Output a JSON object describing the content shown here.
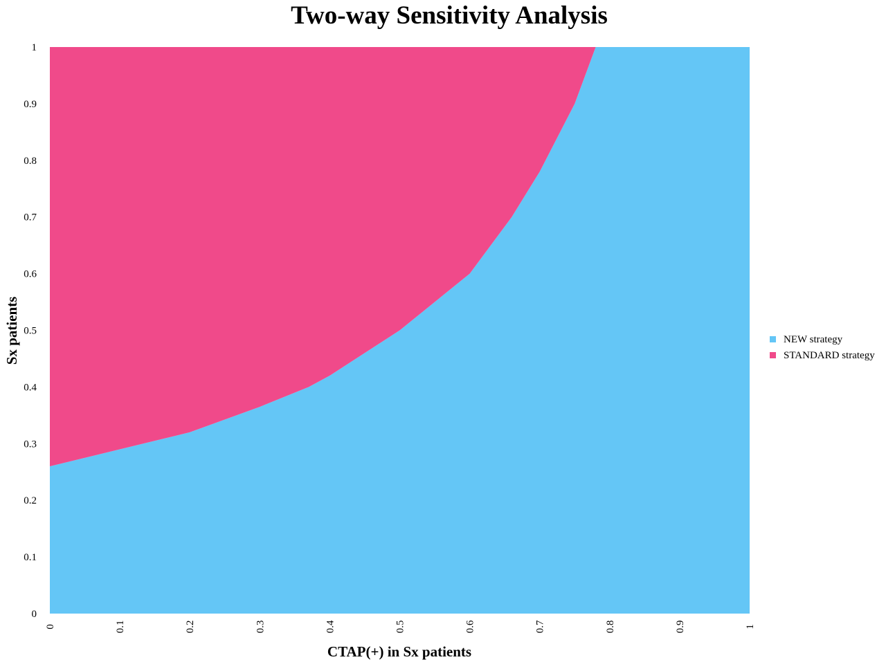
{
  "chart_data": {
    "type": "area",
    "title": "Two-way Sensitivity Analysis",
    "xlabel": "CTAP(+) in Sx patients",
    "ylabel": "Sx patients",
    "xlim": [
      0,
      1
    ],
    "ylim": [
      0,
      1
    ],
    "x_ticks": [
      "0",
      "0.1",
      "0.2",
      "0.3",
      "0.4",
      "0.5",
      "0.6",
      "0.7",
      "0.8",
      "0.9",
      "1"
    ],
    "y_ticks": [
      "0",
      "0.1",
      "0.2",
      "0.3",
      "0.4",
      "0.5",
      "0.6",
      "0.7",
      "0.8",
      "0.9",
      "1"
    ],
    "grid": false,
    "legend_position": "right",
    "series": [
      {
        "name": "NEW strategy",
        "color": "#64c6f6",
        "region": "below threshold curve"
      },
      {
        "name": "STANDARD strategy",
        "color": "#f04a8a",
        "region": "above threshold curve"
      }
    ],
    "threshold_curve": {
      "x": [
        0,
        0.1,
        0.2,
        0.3,
        0.37,
        0.4,
        0.5,
        0.6,
        0.66,
        0.7,
        0.75,
        0.78
      ],
      "y": [
        0.26,
        0.29,
        0.32,
        0.365,
        0.4,
        0.42,
        0.5,
        0.6,
        0.7,
        0.78,
        0.9,
        1.0
      ]
    }
  }
}
